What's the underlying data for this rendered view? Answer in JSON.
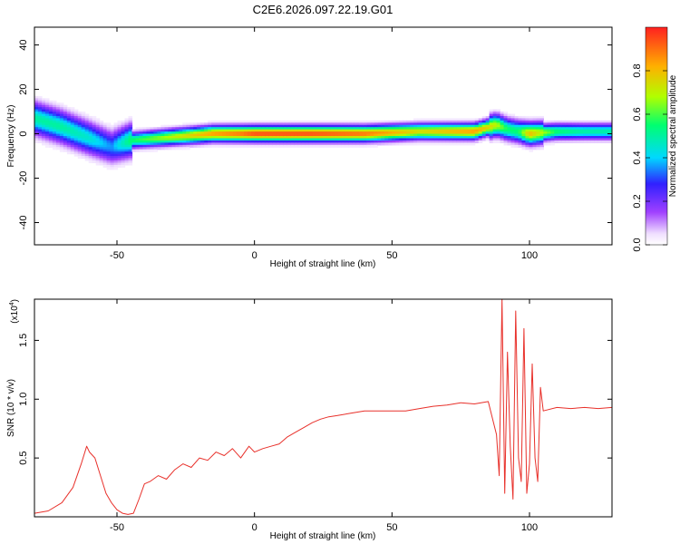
{
  "title": "C2E6.2026.097.22.19.G01",
  "colors": {
    "snr_line": "#e8302a",
    "axes": "#000000",
    "background": "#ffffff",
    "spectrogram_colormap": [
      "#ffffff",
      "#e6d0ff",
      "#a040ff",
      "#3020ff",
      "#00d8ff",
      "#00ff70",
      "#b0ff00",
      "#ffb000",
      "#ff2020"
    ]
  },
  "chart_data": [
    {
      "type": "heatmap",
      "xlabel": "Height of straight line (km)",
      "ylabel": "Frequency (Hz)",
      "xlim": [
        -80,
        130
      ],
      "ylim": [
        -50,
        48
      ],
      "xticks": [
        -50,
        0,
        50,
        100
      ],
      "yticks": [
        -40,
        -20,
        0,
        20,
        40
      ],
      "grid": false,
      "colorbar": {
        "label": "Normalized spectral amplitude",
        "range": [
          0.0,
          1.0
        ],
        "ticks": [
          0.0,
          0.2,
          0.4,
          0.6,
          0.8
        ]
      },
      "ridge": {
        "x": [
          -80,
          -70,
          -60,
          -52,
          -45,
          -35,
          -25,
          -15,
          -5,
          0,
          20,
          40,
          60,
          80,
          88,
          92,
          96,
          100,
          110,
          120,
          130
        ],
        "frequency": [
          7,
          3,
          -2,
          -6,
          -3,
          -2,
          -1,
          0,
          0,
          0,
          0,
          0,
          1,
          1,
          4,
          2,
          1,
          0,
          1,
          1,
          1
        ],
        "amplitude": [
          0.5,
          0.5,
          0.45,
          0.35,
          0.55,
          0.65,
          0.75,
          0.85,
          0.9,
          0.95,
          0.95,
          0.9,
          0.75,
          0.85,
          0.7,
          0.55,
          0.55,
          0.8,
          0.55,
          0.5,
          0.5
        ]
      }
    },
    {
      "type": "line",
      "xlabel": "Height of straight line (km)",
      "ylabel": "SNR (10 * v/v)",
      "yscale_label": "(x10",
      "yscale_exponent": "4",
      "xlim": [
        -80,
        130
      ],
      "ylim": [
        0,
        1.85
      ],
      "xticks": [
        -50,
        0,
        50,
        100
      ],
      "yticks": [
        0.5,
        1.0,
        1.5
      ],
      "ytick_labels": [
        "0.5",
        "1.0",
        "1.5"
      ],
      "grid": false,
      "series": [
        {
          "x": [
            -80,
            -75,
            -70,
            -66,
            -63,
            -61,
            -60,
            -58,
            -56,
            -54,
            -52,
            -50,
            -48,
            -46,
            -44,
            -42,
            -40,
            -38,
            -35,
            -32,
            -29,
            -26,
            -23,
            -20,
            -17,
            -14,
            -11,
            -8,
            -5,
            -2,
            0,
            3,
            6,
            9,
            12,
            15,
            18,
            21,
            24,
            27,
            30,
            35,
            40,
            45,
            50,
            55,
            60,
            65,
            70,
            75,
            80,
            85,
            88,
            89,
            90,
            91,
            92,
            93,
            94,
            95,
            96,
            97,
            98,
            99,
            100,
            101,
            102,
            103,
            104,
            105,
            110,
            115,
            120,
            125,
            130
          ],
          "values": [
            0.03,
            0.05,
            0.12,
            0.25,
            0.45,
            0.6,
            0.55,
            0.5,
            0.35,
            0.2,
            0.12,
            0.06,
            0.03,
            0.02,
            0.03,
            0.15,
            0.28,
            0.3,
            0.35,
            0.32,
            0.4,
            0.45,
            0.42,
            0.5,
            0.48,
            0.55,
            0.52,
            0.58,
            0.5,
            0.6,
            0.55,
            0.58,
            0.6,
            0.62,
            0.68,
            0.72,
            0.76,
            0.8,
            0.83,
            0.85,
            0.86,
            0.88,
            0.9,
            0.9,
            0.9,
            0.9,
            0.92,
            0.94,
            0.95,
            0.97,
            0.96,
            0.98,
            0.7,
            0.35,
            1.85,
            0.2,
            1.4,
            0.6,
            0.15,
            1.75,
            0.5,
            0.3,
            1.6,
            0.2,
            0.45,
            1.3,
            0.5,
            0.3,
            1.1,
            0.9,
            0.93,
            0.92,
            0.93,
            0.92,
            0.93
          ]
        }
      ]
    }
  ]
}
